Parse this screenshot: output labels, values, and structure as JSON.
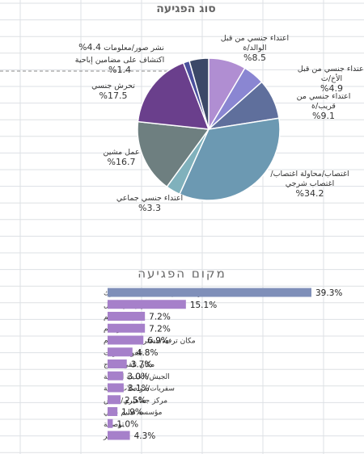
{
  "chart_data": [
    {
      "type": "pie",
      "title": "סוג הפגיעה",
      "categories": [
        "اعتداء جنسي من قبل الوالد/ة",
        "اعتداء جنسي من قبل الأخ/ت",
        "اعتداء جنسي من قريب/ة",
        "اغتصاب/محاولة اغتصاب/اغتصاب شرجي",
        "اعتداء جنسي جماعي",
        "عمل مشين",
        "تحرش جنسي",
        "اكتشاف على مضامين إباحية",
        "نشر صور/معلومات"
      ],
      "values": [
        8.5,
        4.9,
        9.1,
        34.2,
        3.3,
        16.7,
        17.5,
        1.4,
        4.4
      ],
      "value_labels": [
        "%8.5",
        "%4.9",
        "%9.1",
        "%34.2",
        "%3.3",
        "%16.7",
        "%17.5",
        "%1.4",
        "%4.4"
      ],
      "colors": [
        "#b08ed2",
        "#8a86d2",
        "#5f6f9c",
        "#6c99b2",
        "#80b1bc",
        "#6e7f80",
        "#6a3f8c",
        "#4a4f9c",
        "#3b4868"
      ]
    },
    {
      "type": "hbar",
      "title": "מקום הפגיעה",
      "categories": [
        "سكن المعتدي/المعتدى عليه/مشترك",
        "في إطار العمل",
        "جهاز التعليم",
        "حيّز عام",
        "مكان ترفيه/مشتريات/استجمام",
        "تلفون/انترنت",
        "مكان تلقي العلاج",
        "الجيش/الخدمة المدنية",
        "سفريات/مواصلات عامة",
        "مركز جماهيري/كنيس",
        "مؤسسة تعليم عالي",
        "توصيلة",
        "آخر"
      ],
      "values": [
        39.3,
        15.1,
        7.2,
        7.2,
        6.9,
        4.8,
        3.7,
        3.0,
        3.1,
        2.5,
        1.9,
        1.0,
        4.3
      ],
      "value_labels": [
        "39.3%",
        "15.1%",
        "7.2%",
        "7.2%",
        "6.9%",
        "4.8%",
        "3.7%",
        "3.0%",
        "3.1%",
        "2.5%",
        "1.9%",
        "1.0%",
        "4.3%"
      ],
      "colors": [
        "#7f8fb9",
        "#a680ca",
        "#a680ca",
        "#a680ca",
        "#a680ca",
        "#a680ca",
        "#a680ca",
        "#a680ca",
        "#a680ca",
        "#a680ca",
        "#a680ca",
        "#a680ca",
        "#a680ca"
      ]
    }
  ]
}
